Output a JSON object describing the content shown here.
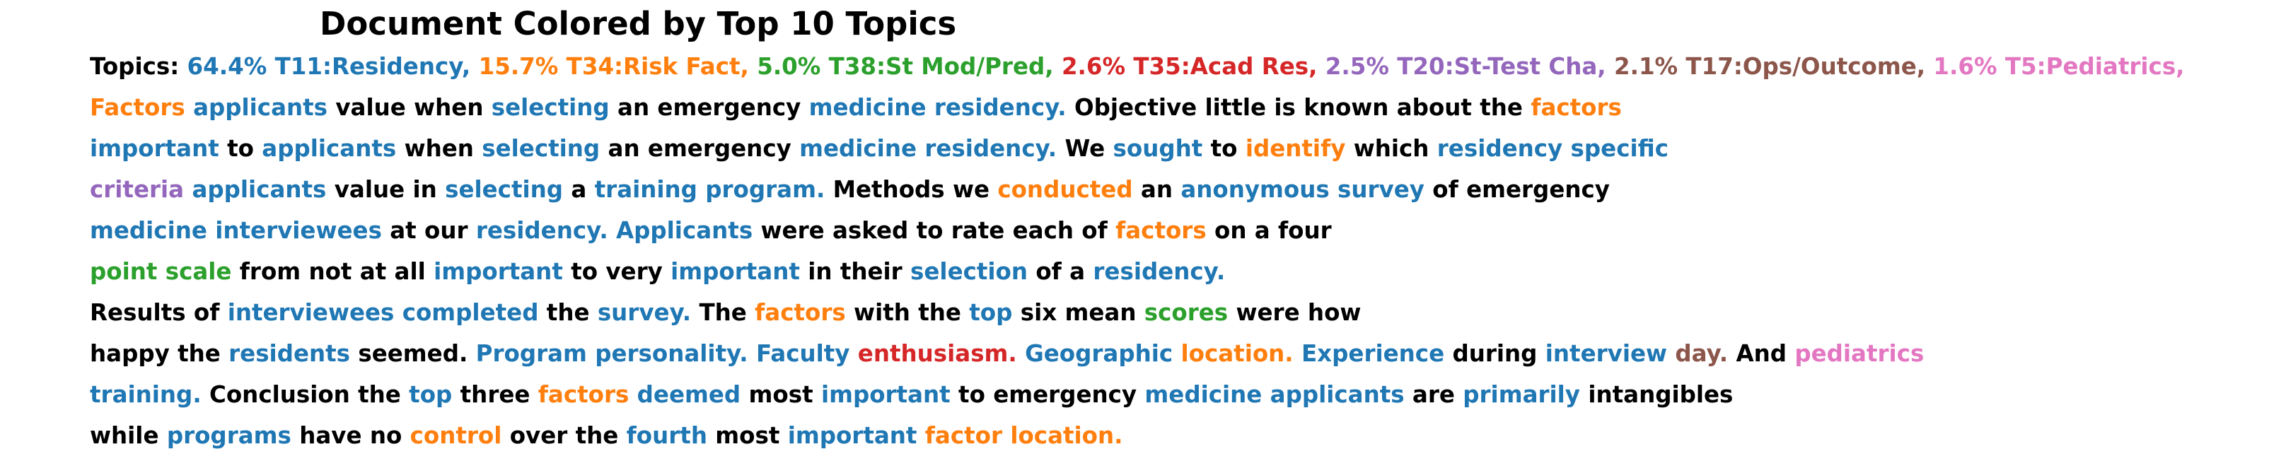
{
  "title": "Document Colored by Top 10 Topics",
  "topic_colors": {
    "none": "#000000",
    "T11": "#1f77b4",
    "T34": "#ff7f0e",
    "T38": "#2ca02c",
    "T35": "#d62728",
    "T20": "#9467bd",
    "T17": "#8c564b",
    "T5": "#e377c2"
  },
  "lines": [
    [
      {
        "text": "Topics:",
        "topic": "none"
      },
      {
        "text": "64.4% T11:Residency,",
        "topic": "T11"
      },
      {
        "text": "15.7% T34:Risk Fact,",
        "topic": "T34"
      },
      {
        "text": "5.0% T38:St Mod/Pred,",
        "topic": "T38"
      },
      {
        "text": "2.6% T35:Acad Res,",
        "topic": "T35"
      },
      {
        "text": "2.5% T20:St-Test Cha,",
        "topic": "T20"
      },
      {
        "text": "2.1% T17:Ops/Outcome,",
        "topic": "T17"
      },
      {
        "text": "1.6% T5:Pediatrics,",
        "topic": "T5"
      }
    ],
    [
      {
        "text": "Factors",
        "topic": "T34"
      },
      {
        "text": "applicants",
        "topic": "T11"
      },
      {
        "text": "value when",
        "topic": "none"
      },
      {
        "text": "selecting",
        "topic": "T11"
      },
      {
        "text": "an emergency",
        "topic": "none"
      },
      {
        "text": "medicine residency.",
        "topic": "T11"
      },
      {
        "text": "Objective little is known about the",
        "topic": "none"
      },
      {
        "text": "factors",
        "topic": "T34"
      }
    ],
    [
      {
        "text": "important",
        "topic": "T11"
      },
      {
        "text": "to",
        "topic": "none"
      },
      {
        "text": "applicants",
        "topic": "T11"
      },
      {
        "text": "when",
        "topic": "none"
      },
      {
        "text": "selecting",
        "topic": "T11"
      },
      {
        "text": "an emergency",
        "topic": "none"
      },
      {
        "text": "medicine residency.",
        "topic": "T11"
      },
      {
        "text": "We",
        "topic": "none"
      },
      {
        "text": "sought",
        "topic": "T11"
      },
      {
        "text": "to",
        "topic": "none"
      },
      {
        "text": "identify",
        "topic": "T34"
      },
      {
        "text": "which",
        "topic": "none"
      },
      {
        "text": "residency specific",
        "topic": "T11"
      }
    ],
    [
      {
        "text": "criteria",
        "topic": "T20"
      },
      {
        "text": "applicants",
        "topic": "T11"
      },
      {
        "text": "value in",
        "topic": "none"
      },
      {
        "text": "selecting",
        "topic": "T11"
      },
      {
        "text": "a",
        "topic": "none"
      },
      {
        "text": "training program.",
        "topic": "T11"
      },
      {
        "text": "Methods we",
        "topic": "none"
      },
      {
        "text": "conducted",
        "topic": "T34"
      },
      {
        "text": "an",
        "topic": "none"
      },
      {
        "text": "anonymous survey",
        "topic": "T11"
      },
      {
        "text": "of emergency",
        "topic": "none"
      }
    ],
    [
      {
        "text": "medicine interviewees",
        "topic": "T11"
      },
      {
        "text": "at our",
        "topic": "none"
      },
      {
        "text": "residency. Applicants",
        "topic": "T11"
      },
      {
        "text": "were asked to rate each of",
        "topic": "none"
      },
      {
        "text": "factors",
        "topic": "T34"
      },
      {
        "text": "on a four",
        "topic": "none"
      }
    ],
    [
      {
        "text": "point scale",
        "topic": "T38"
      },
      {
        "text": "from not at all",
        "topic": "none"
      },
      {
        "text": "important",
        "topic": "T11"
      },
      {
        "text": "to very",
        "topic": "none"
      },
      {
        "text": "important",
        "topic": "T11"
      },
      {
        "text": "in their",
        "topic": "none"
      },
      {
        "text": "selection",
        "topic": "T11"
      },
      {
        "text": "of a",
        "topic": "none"
      },
      {
        "text": "residency.",
        "topic": "T11"
      }
    ],
    [
      {
        "text": "Results of",
        "topic": "none"
      },
      {
        "text": "interviewees completed",
        "topic": "T11"
      },
      {
        "text": "the",
        "topic": "none"
      },
      {
        "text": "survey.",
        "topic": "T11"
      },
      {
        "text": "The",
        "topic": "none"
      },
      {
        "text": "factors",
        "topic": "T34"
      },
      {
        "text": "with the",
        "topic": "none"
      },
      {
        "text": "top",
        "topic": "T11"
      },
      {
        "text": "six mean",
        "topic": "none"
      },
      {
        "text": "scores",
        "topic": "T38"
      },
      {
        "text": "were how",
        "topic": "none"
      }
    ],
    [
      {
        "text": "happy the",
        "topic": "none"
      },
      {
        "text": "residents",
        "topic": "T11"
      },
      {
        "text": "seemed.",
        "topic": "none"
      },
      {
        "text": "Program personality. Faculty",
        "topic": "T11"
      },
      {
        "text": "enthusiasm.",
        "topic": "T35"
      },
      {
        "text": "Geographic",
        "topic": "T11"
      },
      {
        "text": "location.",
        "topic": "T34"
      },
      {
        "text": "Experience",
        "topic": "T11"
      },
      {
        "text": "during",
        "topic": "none"
      },
      {
        "text": "interview",
        "topic": "T11"
      },
      {
        "text": "day.",
        "topic": "T17"
      },
      {
        "text": "And",
        "topic": "none"
      },
      {
        "text": "pediatrics",
        "topic": "T5"
      }
    ],
    [
      {
        "text": "training.",
        "topic": "T11"
      },
      {
        "text": "Conclusion the",
        "topic": "none"
      },
      {
        "text": "top",
        "topic": "T11"
      },
      {
        "text": "three",
        "topic": "none"
      },
      {
        "text": "factors",
        "topic": "T34"
      },
      {
        "text": "deemed",
        "topic": "T11"
      },
      {
        "text": "most",
        "topic": "none"
      },
      {
        "text": "important",
        "topic": "T11"
      },
      {
        "text": "to emergency",
        "topic": "none"
      },
      {
        "text": "medicine applicants",
        "topic": "T11"
      },
      {
        "text": "are",
        "topic": "none"
      },
      {
        "text": "primarily",
        "topic": "T11"
      },
      {
        "text": "intangibles",
        "topic": "none"
      }
    ],
    [
      {
        "text": "while",
        "topic": "none"
      },
      {
        "text": "programs",
        "topic": "T11"
      },
      {
        "text": "have no",
        "topic": "none"
      },
      {
        "text": "control",
        "topic": "T34"
      },
      {
        "text": "over the",
        "topic": "none"
      },
      {
        "text": "fourth",
        "topic": "T11"
      },
      {
        "text": "most",
        "topic": "none"
      },
      {
        "text": "important",
        "topic": "T11"
      },
      {
        "text": "factor location.",
        "topic": "T34"
      }
    ]
  ]
}
